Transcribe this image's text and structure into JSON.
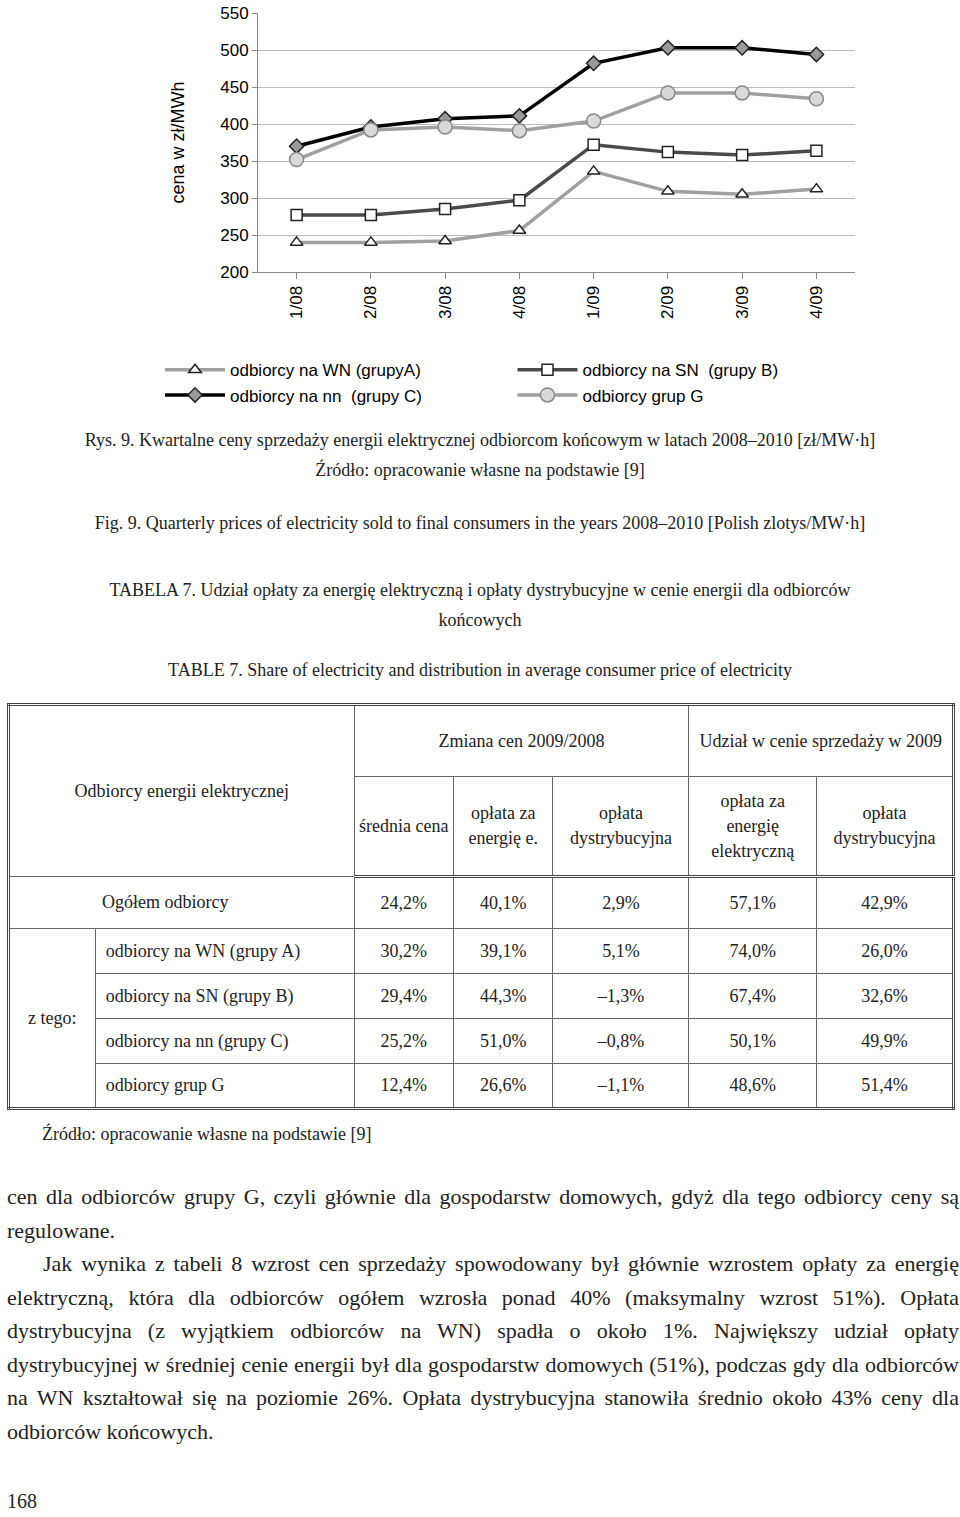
{
  "chart_data": {
    "type": "line",
    "y_label": "cena w zł/MWh",
    "categories": [
      "1/08",
      "2/08",
      "3/08",
      "4/08",
      "1/09",
      "2/09",
      "3/09",
      "4/09"
    ],
    "series": [
      {
        "name": "odbiorcy na WN (grupyA)",
        "color": "#a0a0a0",
        "marker": "triangle-up",
        "values": [
          240,
          240,
          242,
          256,
          336,
          309,
          305,
          312
        ]
      },
      {
        "name": "odbiorcy na SN  (grupy B)",
        "color": "#4a4a4a",
        "marker": "square",
        "values": [
          277,
          277,
          285,
          297,
          372,
          362,
          358,
          364
        ]
      },
      {
        "name": "odbiorcy na nn  (grupy C)",
        "color": "#000000",
        "marker": "diamond",
        "values": [
          370,
          396,
          407,
          411,
          482,
          503,
          503,
          494
        ]
      },
      {
        "name": "odbiorcy grup G",
        "color": "#a0a0a0",
        "marker": "circle",
        "values": [
          352,
          392,
          396,
          391,
          404,
          442,
          442,
          434
        ]
      }
    ],
    "ylim": [
      200,
      550
    ],
    "yticks": [
      200,
      250,
      300,
      350,
      400,
      450,
      500,
      550
    ],
    "grid": true,
    "legend": "bottom"
  },
  "figure_caption": [
    "Rys. 9. Kwartalne ceny sprzedaży energii elektrycznej odbiorcom końcowym w latach 2008–2010 [zł/MW·h]",
    "Źródło: opracowanie własne na podstawie [9]"
  ],
  "figure_caption_en": "Fig. 9. Quarterly prices of electricity sold to final consumers in the years 2008–2010 [Polish zlotys/MW·h]",
  "table_caption": "TABELA 7. Udział opłaty za energię elektryczną i opłaty dystrybucyjne w cenie energii dla odbiorców końcowych",
  "table_caption_en": "TABLE 7. Share of electricity and distribution in average consumer price of electricity",
  "table": {
    "corner": "Odbiorcy energii elektrycznej",
    "group_headers": [
      "Zmiana cen 2009/2008",
      "Udział w cenie sprzedaży w 2009"
    ],
    "sub_headers": [
      "średnia cena",
      "opłata za energię e.",
      "opłata dystrybucyjna",
      "opłata za energię elektryczną",
      "opłata dystrybucyjna"
    ],
    "total_row": {
      "label": "Ogółem odbiorcy",
      "values": [
        "24,2%",
        "40,1%",
        "2,9%",
        "57,1%",
        "42,9%"
      ]
    },
    "group_label": "z tego:",
    "rows": [
      {
        "label": "odbiorcy na WN (grupy A)",
        "values": [
          "30,2%",
          "39,1%",
          "5,1%",
          "74,0%",
          "26,0%"
        ]
      },
      {
        "label": "odbiorcy na SN (grupy B)",
        "values": [
          "29,4%",
          "44,3%",
          "–1,3%",
          "67,4%",
          "32,6%"
        ]
      },
      {
        "label": "odbiorcy na nn (grupy C)",
        "values": [
          "25,2%",
          "51,0%",
          "–0,8%",
          "50,1%",
          "49,9%"
        ]
      },
      {
        "label": "odbiorcy grup G",
        "values": [
          "12,4%",
          "26,6%",
          "–1,1%",
          "48,6%",
          "51,4%"
        ]
      }
    ]
  },
  "table_source": "Źródło: opracowanie własne na podstawie [9]",
  "body": [
    "cen dla odbiorców grupy G, czyli głównie dla gospodarstw domowych, gdyż dla tego odbiorcy ceny są regulowane.",
    "Jak wynika z tabeli 8 wzrost cen sprzedaży spowodowany był głównie wzrostem opłaty za energię elektryczną, która dla odbiorców ogółem wzrosła ponad 40% (maksymalny wzrost 51%). Opłata dystrybucyjna (z wyjątkiem odbiorców na WN) spadła o około 1%. Największy udział opłaty dystrybucyjnej w średniej cenie energii był dla gospodarstw domowych (51%), podczas gdy dla odbiorców na WN kształtował się na poziomie 26%. Opłata dystrybucyjna stanowiła średnio około 43% ceny dla odbiorców końcowych."
  ],
  "page_number": "168"
}
